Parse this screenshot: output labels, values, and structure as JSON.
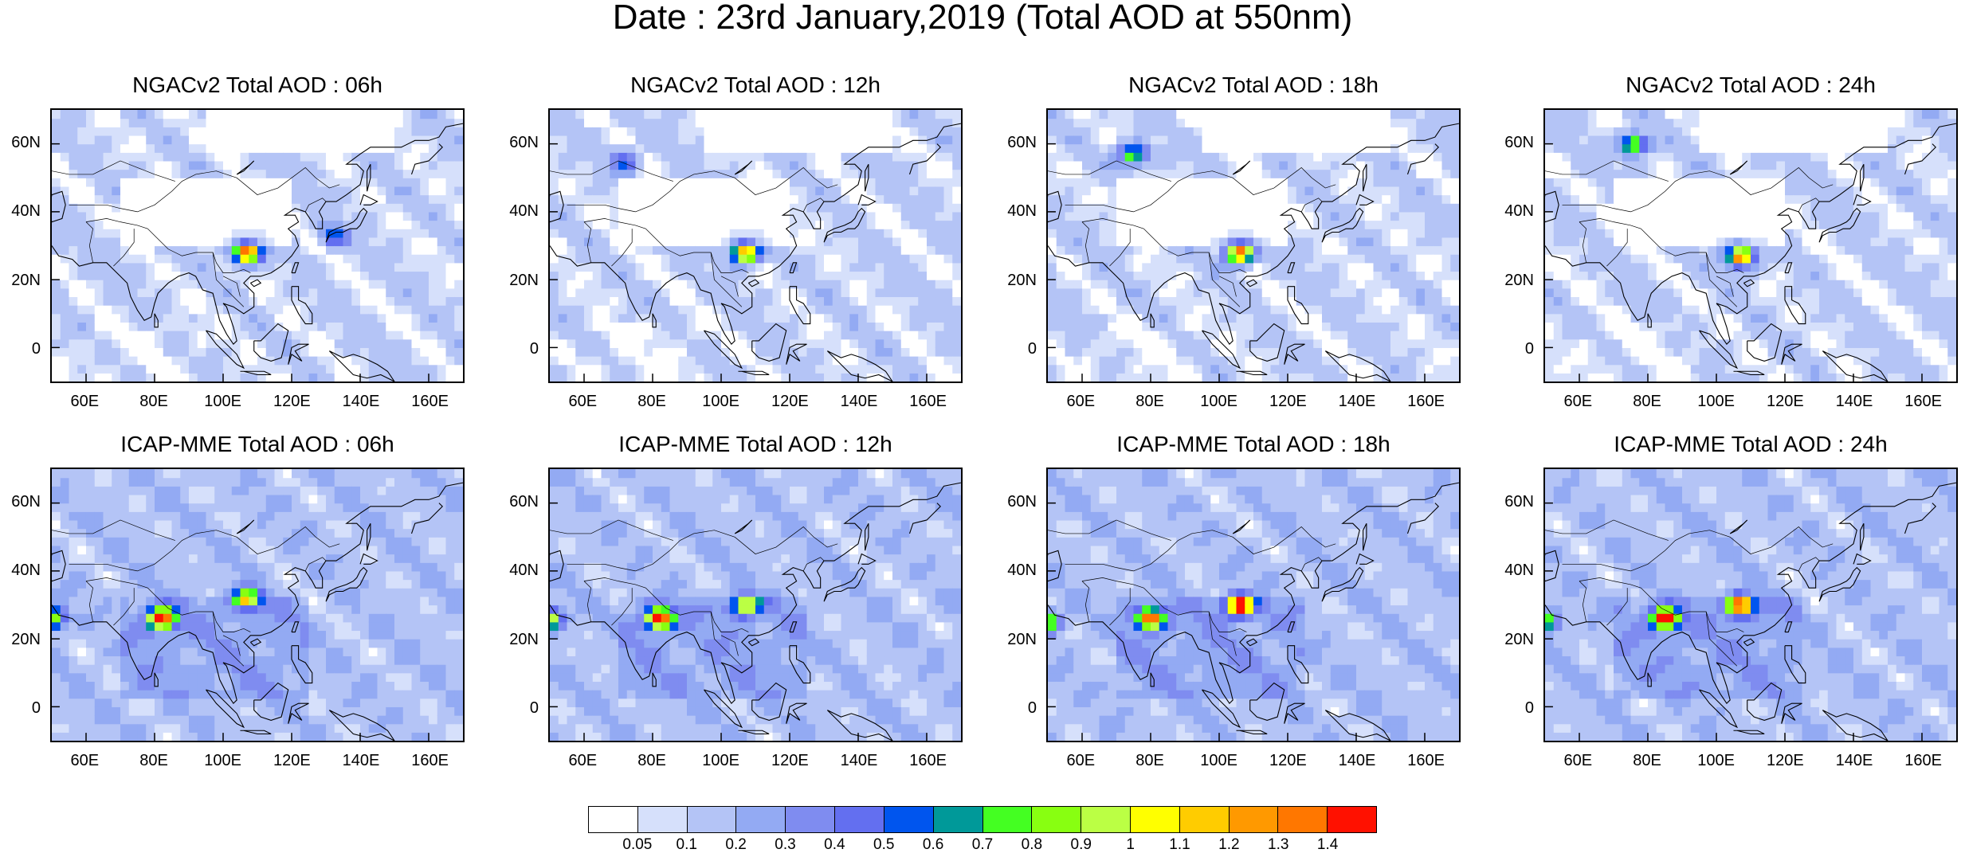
{
  "title": "Date : 23rd January,2019 (Total AOD at 550nm)",
  "panels": [
    {
      "title": "NGACv2 Total AOD : 06h",
      "row": 0,
      "col": 0,
      "model": "ngac",
      "hour": 6
    },
    {
      "title": "NGACv2 Total AOD : 12h",
      "row": 0,
      "col": 1,
      "model": "ngac",
      "hour": 12
    },
    {
      "title": "NGACv2 Total AOD : 18h",
      "row": 0,
      "col": 2,
      "model": "ngac",
      "hour": 18
    },
    {
      "title": "NGACv2 Total AOD : 24h",
      "row": 0,
      "col": 3,
      "model": "ngac",
      "hour": 24
    },
    {
      "title": "ICAP-MME Total AOD : 06h",
      "row": 1,
      "col": 0,
      "model": "icap",
      "hour": 6
    },
    {
      "title": "ICAP-MME Total AOD : 12h",
      "row": 1,
      "col": 1,
      "model": "icap",
      "hour": 12
    },
    {
      "title": "ICAP-MME Total AOD : 18h",
      "row": 1,
      "col": 2,
      "model": "icap",
      "hour": 18
    },
    {
      "title": "ICAP-MME Total AOD : 24h",
      "row": 1,
      "col": 3,
      "model": "icap",
      "hour": 24
    }
  ],
  "lat_ticks": [
    "60N",
    "40N",
    "20N",
    "0"
  ],
  "lon_ticks": [
    "60E",
    "80E",
    "100E",
    "120E",
    "140E",
    "160E"
  ],
  "colorbar": {
    "colors": [
      "#ffffff",
      "#d6e0fb",
      "#b4c4f6",
      "#93aaf3",
      "#7f8cf0",
      "#636ff0",
      "#0055ee",
      "#009999",
      "#44ff22",
      "#88ff11",
      "#bbff44",
      "#ffff00",
      "#ffcc00",
      "#ff9900",
      "#ff7700",
      "#ff1100"
    ],
    "labels": [
      "0.05",
      "0.1",
      "0.2",
      "0.3",
      "0.4",
      "0.5",
      "0.6",
      "0.7",
      "0.8",
      "0.9",
      "1",
      "1.1",
      "1.2",
      "1.3",
      "1.4"
    ]
  },
  "hotspots": {
    "ngac": {
      "6": [
        {
          "lon": 107,
          "lat": 28,
          "peak": 1.4
        },
        {
          "lon": 132,
          "lat": 33,
          "peak": 0.5
        }
      ],
      "12": [
        {
          "lon": 107,
          "lat": 28,
          "peak": 1.3
        },
        {
          "lon": 72,
          "lat": 55,
          "peak": 0.45
        }
      ],
      "18": [
        {
          "lon": 106,
          "lat": 28,
          "peak": 1.4
        },
        {
          "lon": 75,
          "lat": 57,
          "peak": 0.8
        }
      ],
      "24": [
        {
          "lon": 107,
          "lat": 27,
          "peak": 1.3
        },
        {
          "lon": 76,
          "lat": 60,
          "peak": 0.9
        }
      ]
    },
    "icap": {
      "6": [
        {
          "lon": 82,
          "lat": 26,
          "peak": 1.4
        },
        {
          "lon": 107,
          "lat": 32,
          "peak": 0.95
        },
        {
          "lon": 50,
          "lat": 26,
          "peak": 0.9
        }
      ],
      "12": [
        {
          "lon": 82,
          "lat": 26,
          "peak": 1.4
        },
        {
          "lon": 107,
          "lat": 30,
          "peak": 1.0
        },
        {
          "lon": 50,
          "lat": 26,
          "peak": 0.9
        }
      ],
      "18": [
        {
          "lon": 80,
          "lat": 26,
          "peak": 1.3
        },
        {
          "lon": 106,
          "lat": 30,
          "peak": 1.4
        },
        {
          "lon": 50,
          "lat": 25,
          "peak": 0.8
        }
      ],
      "24": [
        {
          "lon": 85,
          "lat": 26,
          "peak": 1.4
        },
        {
          "lon": 107,
          "lat": 30,
          "peak": 1.3
        },
        {
          "lon": 50,
          "lat": 25,
          "peak": 0.8
        }
      ]
    }
  }
}
